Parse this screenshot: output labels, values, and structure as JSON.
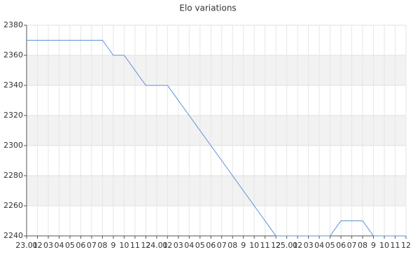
{
  "chart_data": {
    "type": "line",
    "title": "Elo variations",
    "categories": [
      "23.01",
      "02",
      "03",
      "04",
      "05",
      "06",
      "07",
      "08",
      "9",
      "10",
      "11",
      "12",
      "24.01",
      "02",
      "03",
      "04",
      "05",
      "06",
      "07",
      "08",
      "9",
      "10",
      "11",
      "12",
      "25.01",
      "02",
      "03",
      "04",
      "05",
      "06",
      "07",
      "08",
      "9",
      "10",
      "11",
      "12"
    ],
    "series": [
      {
        "name": "Elo",
        "color": "#5b8fd8",
        "values": [
          2370,
          2370,
          2370,
          2370,
          2370,
          2370,
          2370,
          2370,
          2360,
          2360,
          2350,
          2340,
          2340,
          2340,
          2330,
          2320,
          2310,
          2300,
          2290,
          2280,
          2270,
          2260,
          2250,
          2240,
          2240,
          2240,
          2240,
          2240,
          2240,
          2250,
          2250,
          2250,
          2240,
          2240,
          2240,
          2240
        ]
      }
    ],
    "ylim": [
      2240,
      2380
    ],
    "yticks": [
      2240,
      2260,
      2280,
      2300,
      2320,
      2340,
      2360,
      2380
    ],
    "grid": true
  }
}
